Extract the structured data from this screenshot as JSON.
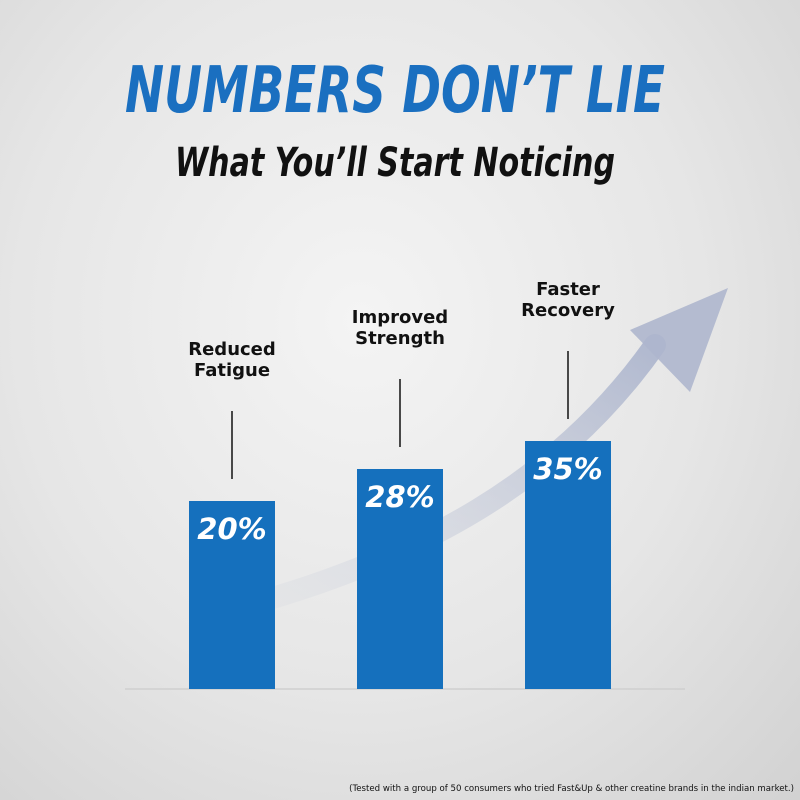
{
  "chart_data": {
    "type": "bar",
    "title": "NUMBERS DON’T LIE",
    "subtitle": "What You’ll Start Noticing",
    "categories": [
      "Reduced Fatigue",
      "Improved Strength",
      "Faster Recovery"
    ],
    "values": [
      20,
      28,
      35
    ],
    "value_labels": [
      "20%",
      "28%",
      "35%"
    ],
    "color": "#1570bd",
    "footnote": "(Tested with a group of 50 consumers who tried Fast&Up & other creatine brands in the indian market.)"
  }
}
